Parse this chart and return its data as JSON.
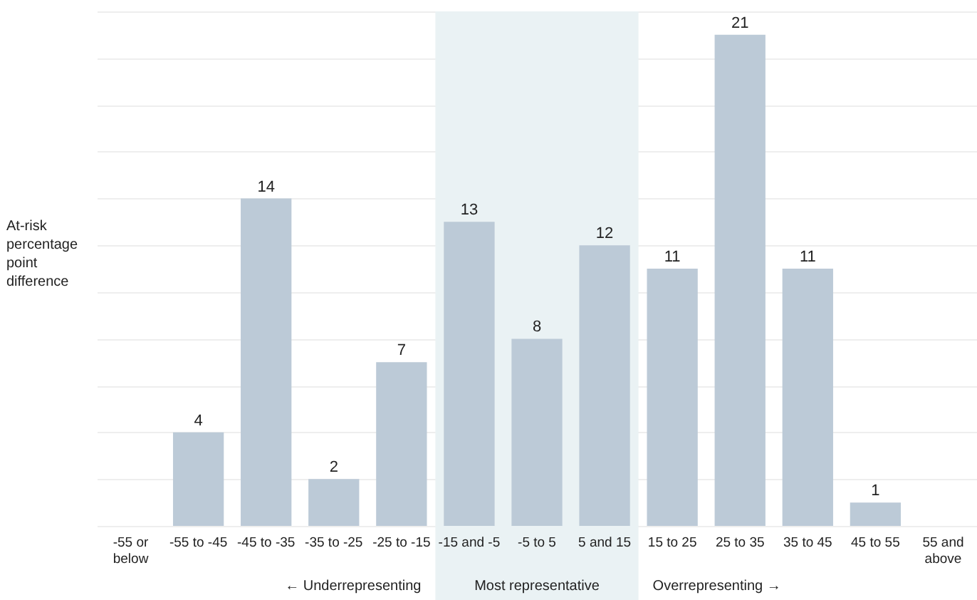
{
  "chart_data": {
    "type": "bar",
    "ylabel": "At-risk percentage point difference",
    "categories": [
      "-55 or below",
      "-55 to -45",
      "-45 to -35",
      "-35 to -25",
      "-25 to -15",
      "-15 and -5",
      "-5 to 5",
      "5 and 15",
      "15 to 25",
      "25 to 35",
      "35 to 45",
      "45 to 55",
      "55 and above"
    ],
    "values": [
      0,
      4,
      14,
      2,
      7,
      13,
      8,
      12,
      11,
      21,
      11,
      1,
      0
    ],
    "value_labels": [
      null,
      "4",
      "14",
      "2",
      "7",
      "13",
      "8",
      "12",
      "11",
      "21",
      "11",
      "1",
      null
    ],
    "color": "#bccad7",
    "tick_labels": "x",
    "grid": "y",
    "bands": [
      {
        "axis": "x",
        "from": "-15 and -5",
        "to": "5 and 15",
        "label": "Most representative",
        "color": "#eaf2f4"
      }
    ],
    "annotations": [
      "← Underrepresenting",
      "Overrepresenting →"
    ]
  }
}
